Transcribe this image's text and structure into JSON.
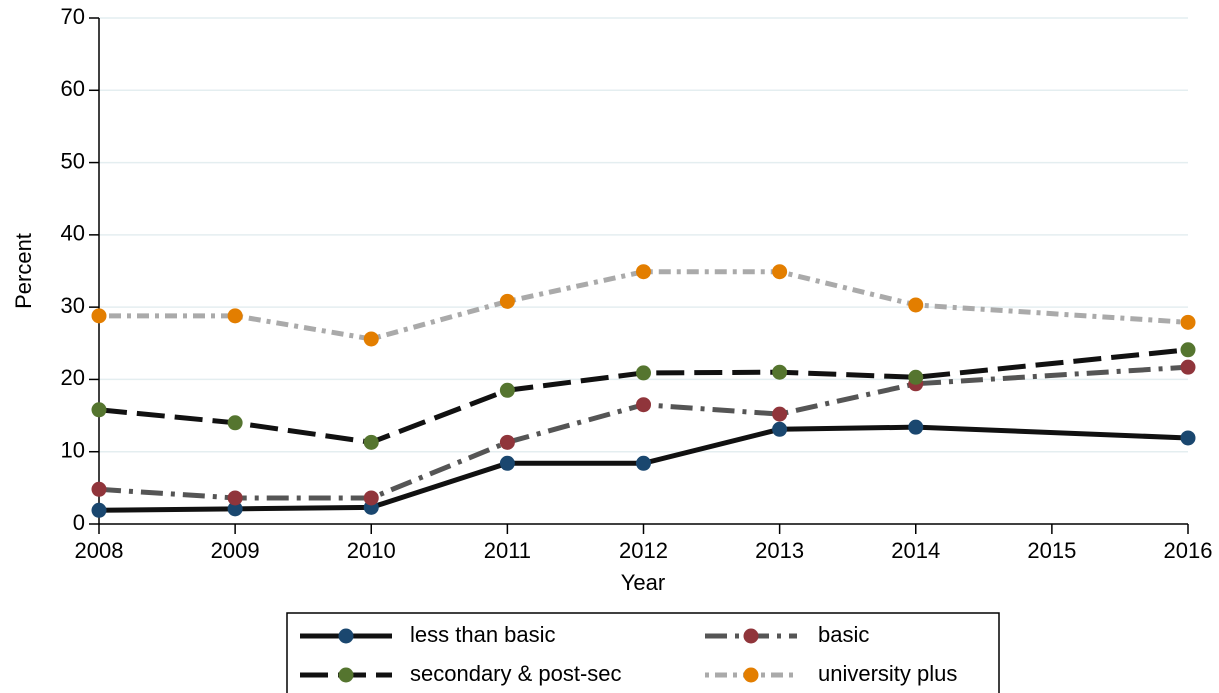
{
  "chart_data": {
    "type": "line",
    "x": [
      2008,
      2009,
      2010,
      2011,
      2012,
      2013,
      2014,
      2016
    ],
    "series": [
      {
        "name": "less than basic",
        "color": "#1a476f",
        "line_color": "#111111",
        "dash": "solid",
        "values": [
          1.9,
          2.1,
          2.3,
          8.4,
          8.4,
          13.1,
          13.4,
          11.9
        ]
      },
      {
        "name": "basic",
        "color": "#90353b",
        "line_color": "#555555",
        "dash": "dashdot",
        "values": [
          4.8,
          3.6,
          3.6,
          11.3,
          16.5,
          15.2,
          19.4,
          21.7
        ]
      },
      {
        "name": "secondary & post-sec",
        "color": "#55752f",
        "line_color": "#111111",
        "dash": "longdash",
        "values": [
          15.8,
          14.0,
          11.3,
          18.5,
          20.9,
          21.0,
          20.3,
          24.1
        ]
      },
      {
        "name": "university plus",
        "color": "#e37e00",
        "line_color": "#aaaaaa",
        "dash": "dotdash",
        "values": [
          28.8,
          28.8,
          25.6,
          30.8,
          34.9,
          34.9,
          30.3,
          27.9
        ]
      }
    ],
    "xlabel": "Year",
    "ylabel": "Percent",
    "xlim": [
      2008,
      2016
    ],
    "xticks": [
      2008,
      2009,
      2010,
      2011,
      2012,
      2013,
      2014,
      2015,
      2016
    ],
    "ylim": [
      0,
      70
    ],
    "yticks": [
      0,
      10,
      20,
      30,
      40,
      50,
      60,
      70
    ],
    "grid": true,
    "legend": "bottom"
  }
}
